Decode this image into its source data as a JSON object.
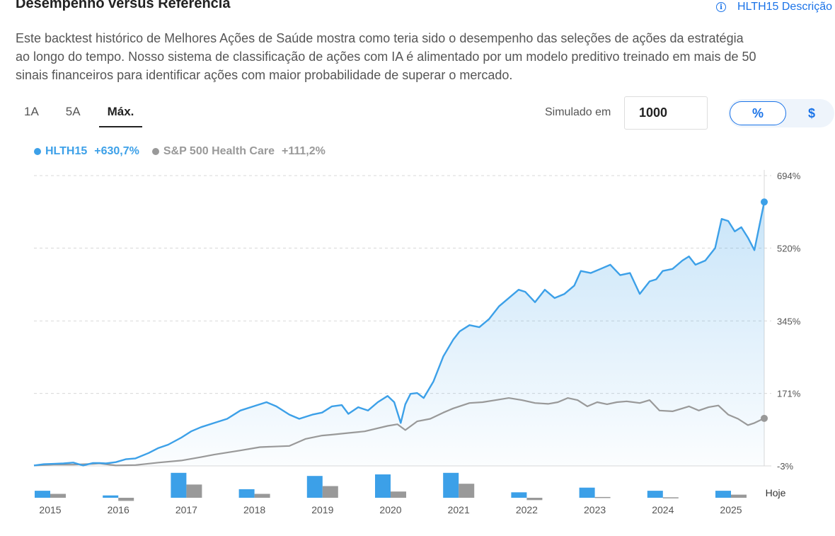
{
  "header": {
    "title": "Desempenho versus Referência",
    "description_link": "HLTH15 Descrição",
    "info_icon": "info-icon"
  },
  "description_lines": [
    "Este backtest histórico de Melhores Ações de Saúde mostra como teria sido o desempenho das seleções de ações da estratégia",
    "ao longo do tempo. Nosso sistema de classificação de ações com IA é alimentado por um modelo preditivo treinado em mais de 50",
    "sinais financeiros para identificar ações com maior probabilidade de superar o mercado."
  ],
  "tabs": [
    {
      "label": "1A",
      "active": false
    },
    {
      "label": "5A",
      "active": false
    },
    {
      "label": "Máx.",
      "active": true
    }
  ],
  "simulation": {
    "label": "Simulado em",
    "value": "1000"
  },
  "toggle": {
    "percent_label": "%",
    "dollar_label": "$",
    "selected": "%"
  },
  "legend": [
    {
      "name": "HLTH15",
      "value": "+630,7%",
      "color": "#3ca0e8"
    },
    {
      "name": "S&P 500 Health Care",
      "value": "+111,2%",
      "color": "#999999"
    }
  ],
  "chart_data": {
    "type": "line",
    "title": "Desempenho versus Referência",
    "y_unit": "%",
    "ylim": [
      -3,
      694
    ],
    "y_ticks": [
      694,
      520,
      345,
      171,
      -3
    ],
    "y_tick_labels": [
      "694%",
      "520%",
      "345%",
      "171%",
      "-3%"
    ],
    "x_range": [
      2014.55,
      2025.7
    ],
    "x_tick_labels": [
      "2015",
      "2016",
      "2017",
      "2018",
      "2019",
      "2020",
      "2021",
      "2022",
      "2023",
      "2024",
      "2025"
    ],
    "today_label": "Hoje",
    "grid": true,
    "series": [
      {
        "name": "HLTH15",
        "color": "#3ca0e8",
        "end_value": 630.7,
        "x": [
          2014.55,
          2014.7,
          2014.85,
          2015.0,
          2015.15,
          2015.3,
          2015.45,
          2015.55,
          2015.65,
          2015.8,
          2015.95,
          2016.1,
          2016.3,
          2016.45,
          2016.6,
          2016.8,
          2016.95,
          2017.1,
          2017.3,
          2017.5,
          2017.7,
          2017.9,
          2018.1,
          2018.25,
          2018.45,
          2018.6,
          2018.8,
          2018.95,
          2019.1,
          2019.25,
          2019.35,
          2019.5,
          2019.65,
          2019.8,
          2019.95,
          2020.05,
          2020.15,
          2020.22,
          2020.3,
          2020.4,
          2020.5,
          2020.65,
          2020.8,
          2020.95,
          2021.05,
          2021.2,
          2021.35,
          2021.5,
          2021.65,
          2021.8,
          2021.95,
          2022.05,
          2022.2,
          2022.35,
          2022.5,
          2022.65,
          2022.8,
          2022.9,
          2023.05,
          2023.2,
          2023.35,
          2023.5,
          2023.65,
          2023.8,
          2023.95,
          2024.05,
          2024.15,
          2024.3,
          2024.45,
          2024.55,
          2024.65,
          2024.8,
          2024.95,
          2025.05,
          2025.15,
          2025.25,
          2025.35,
          2025.45,
          2025.55,
          2025.7
        ],
        "values": [
          -2,
          1,
          2,
          3,
          5,
          -2,
          4,
          4,
          3,
          6,
          13,
          15,
          28,
          40,
          48,
          65,
          80,
          90,
          100,
          110,
          130,
          140,
          150,
          140,
          120,
          110,
          120,
          125,
          140,
          143,
          122,
          138,
          130,
          150,
          165,
          150,
          100,
          145,
          170,
          172,
          160,
          200,
          260,
          300,
          320,
          335,
          330,
          350,
          380,
          400,
          420,
          415,
          390,
          420,
          400,
          410,
          430,
          465,
          460,
          470,
          480,
          455,
          460,
          410,
          440,
          445,
          465,
          470,
          490,
          500,
          480,
          490,
          520,
          590,
          585,
          560,
          570,
          545,
          515,
          630.7
        ]
      },
      {
        "name": "S&P 500 Health Care",
        "color": "#999999",
        "end_value": 111.2,
        "x": [
          2014.55,
          2014.85,
          2015.15,
          2015.45,
          2015.55,
          2015.8,
          2016.1,
          2016.45,
          2016.8,
          2017.1,
          2017.3,
          2017.7,
          2018.0,
          2018.45,
          2018.7,
          2018.95,
          2019.1,
          2019.35,
          2019.6,
          2019.95,
          2020.1,
          2020.22,
          2020.4,
          2020.6,
          2020.8,
          2020.95,
          2021.2,
          2021.4,
          2021.6,
          2021.8,
          2022.0,
          2022.2,
          2022.4,
          2022.55,
          2022.7,
          2022.85,
          2023.0,
          2023.15,
          2023.3,
          2023.45,
          2023.6,
          2023.8,
          2023.95,
          2024.1,
          2024.3,
          2024.45,
          2024.55,
          2024.7,
          2024.85,
          2025.0,
          2025.15,
          2025.3,
          2025.45,
          2025.55,
          2025.7
        ],
        "values": [
          -2,
          0,
          0,
          2,
          3,
          -2,
          -1,
          5,
          10,
          18,
          24,
          34,
          42,
          45,
          62,
          70,
          72,
          76,
          80,
          93,
          97,
          83,
          104,
          110,
          125,
          135,
          148,
          150,
          155,
          160,
          155,
          148,
          146,
          150,
          160,
          155,
          140,
          150,
          145,
          150,
          152,
          148,
          155,
          130,
          128,
          135,
          140,
          130,
          138,
          142,
          120,
          110,
          95,
          100,
          111.2
        ]
      }
    ],
    "annual_returns": {
      "years": [
        "2015",
        "2016",
        "2017",
        "2018",
        "2019",
        "2020",
        "2021",
        "2022",
        "2023",
        "2024",
        "2025"
      ],
      "strategy": [
        4.5,
        1.5,
        16,
        5.5,
        14,
        15,
        16,
        3.5,
        6.5,
        4.5,
        4.5
      ],
      "benchmark": [
        2.5,
        -2,
        8.5,
        2.5,
        7.5,
        4,
        9,
        -1.5,
        0.5,
        0.3,
        2
      ]
    }
  }
}
